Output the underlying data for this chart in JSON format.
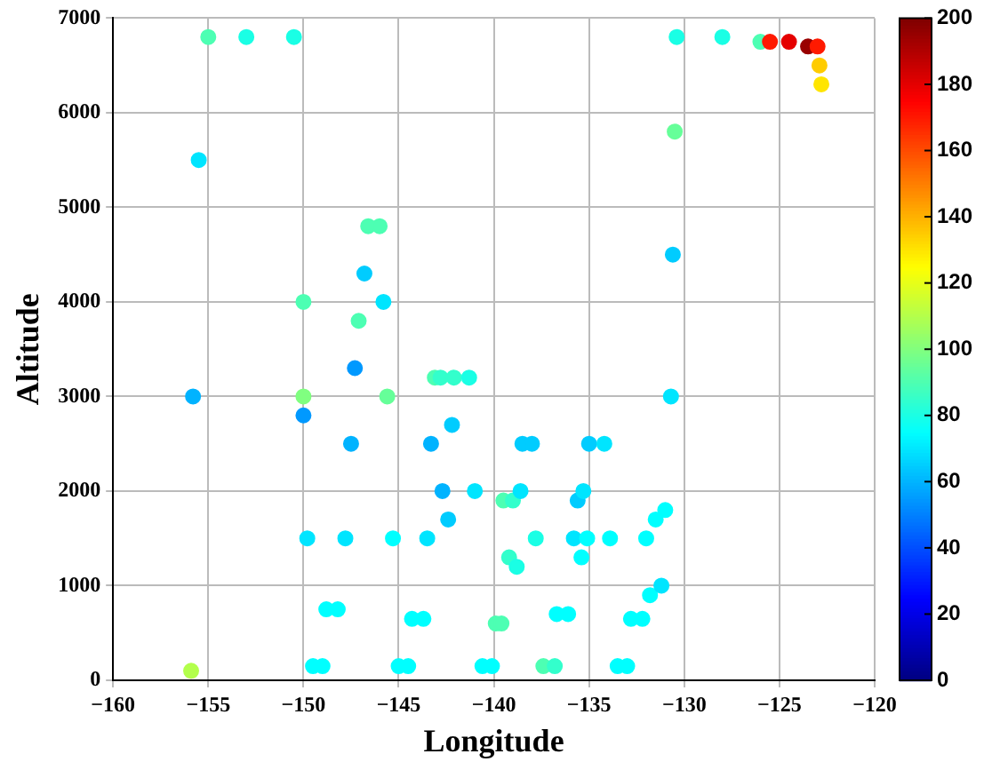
{
  "chart_data": {
    "type": "scatter",
    "xlabel": "Longitude",
    "ylabel": "Altitude",
    "marker": "circle",
    "grid": true,
    "x": [
      -155.9,
      -155.8,
      -155.5,
      -155,
      -153,
      -150.5,
      -150,
      -150,
      -150,
      -149.8,
      -149.5,
      -149,
      -148.8,
      -148.2,
      -147.8,
      -147.5,
      -147.3,
      -147.1,
      -146.8,
      -146.6,
      -146,
      -145.8,
      -145.6,
      -145.3,
      -145,
      -144.5,
      -144.3,
      -143.7,
      -143.5,
      -143.3,
      -143.1,
      -142.8,
      -142.7,
      -142.4,
      -142.2,
      -142.1,
      -141.3,
      -141,
      -140.6,
      -140.1,
      -139.9,
      -139.6,
      -139.5,
      -139.2,
      -139,
      -138.8,
      -138.6,
      -138.5,
      -138,
      -137.8,
      -137.4,
      -136.8,
      -136.7,
      -136.1,
      -135.8,
      -135.6,
      -135.4,
      -135.3,
      -135.1,
      -135,
      -134.2,
      -133.9,
      -133.5,
      -133,
      -132.8,
      -132.2,
      -132,
      -131.8,
      -131.5,
      -131.2,
      -131,
      -130.7,
      -130.6,
      -130.5,
      -130.4,
      -128,
      -126,
      -125.5,
      -124.5,
      -123.5,
      -123,
      -122.9,
      -122.8
    ],
    "values": [
      100,
      3000,
      5500,
      6800,
      6800,
      6800,
      4000,
      3000,
      2800,
      1500,
      150,
      150,
      750,
      750,
      1500,
      2500,
      3300,
      3800,
      4300,
      4800,
      4800,
      4000,
      3000,
      1500,
      150,
      150,
      650,
      650,
      1500,
      2500,
      3200,
      3200,
      2000,
      1700,
      2700,
      3200,
      3200,
      2000,
      150,
      150,
      600,
      600,
      1900,
      1300,
      1900,
      1200,
      2000,
      2500,
      2500,
      1500,
      150,
      150,
      700,
      700,
      1500,
      1900,
      1300,
      2000,
      1500,
      2500,
      2500,
      1500,
      150,
      150,
      650,
      650,
      1500,
      900,
      1700,
      1000,
      1800,
      3000,
      4500,
      5800,
      6800,
      6800,
      6750,
      6750,
      6750,
      6700,
      6700,
      6500,
      6300
    ],
    "cvalues": [
      110,
      60,
      70,
      90,
      80,
      80,
      90,
      100,
      55,
      70,
      75,
      75,
      75,
      75,
      70,
      60,
      55,
      90,
      65,
      90,
      90,
      70,
      95,
      75,
      75,
      75,
      75,
      75,
      70,
      60,
      90,
      85,
      60,
      65,
      65,
      85,
      80,
      70,
      75,
      75,
      90,
      90,
      90,
      85,
      85,
      80,
      70,
      65,
      65,
      80,
      90,
      85,
      75,
      75,
      70,
      65,
      75,
      70,
      75,
      65,
      70,
      75,
      75,
      75,
      75,
      75,
      75,
      75,
      75,
      70,
      75,
      70,
      65,
      95,
      80,
      80,
      90,
      170,
      180,
      195,
      170,
      135,
      130
    ],
    "xlim": [
      -160,
      -120
    ],
    "xticks": [
      -160,
      -155,
      -150,
      -145,
      -140,
      -135,
      -130,
      -125,
      -120
    ],
    "ylim": [
      0,
      7000
    ],
    "yticks": [
      0,
      1000,
      2000,
      3000,
      4000,
      5000,
      6000,
      7000
    ],
    "clim": [
      0,
      200
    ],
    "cticks": [
      0,
      20,
      40,
      60,
      80,
      100,
      120,
      140,
      160,
      180,
      200
    ]
  }
}
